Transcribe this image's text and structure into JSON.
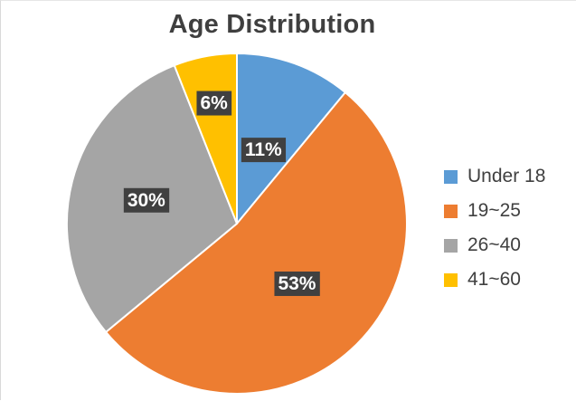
{
  "chart_data": {
    "type": "pie",
    "title": "Age Distribution",
    "categories": [
      "Under 18",
      "19~25",
      "26~40",
      "41~60"
    ],
    "values": [
      11,
      53,
      30,
      6
    ],
    "data_labels": [
      "11%",
      "53%",
      "30%",
      "6%"
    ],
    "colors": [
      "#5b9bd5",
      "#ed7d31",
      "#a5a5a5",
      "#ffc000"
    ],
    "start_angle": "12 o'clock",
    "direction": "clockwise",
    "legend_position": "right"
  }
}
